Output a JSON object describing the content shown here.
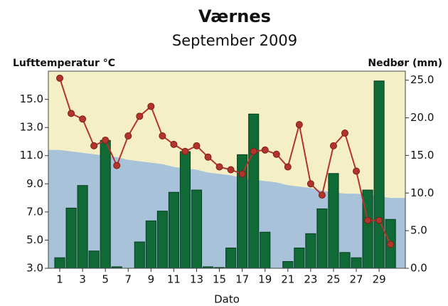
{
  "chart_data": {
    "type": "combo",
    "title": "Værnes",
    "subtitle": "September 2009",
    "ylabel": "Lufttemperatur °C",
    "y2label": "Nedbør (mm)",
    "xlabel": "Dato",
    "x": [
      1,
      2,
      3,
      4,
      5,
      6,
      7,
      8,
      9,
      10,
      11,
      12,
      13,
      14,
      15,
      16,
      17,
      18,
      19,
      20,
      21,
      22,
      23,
      24,
      25,
      26,
      27,
      28,
      29,
      30
    ],
    "xlim": [
      0,
      31.3
    ],
    "xticks": [
      1,
      3,
      5,
      7,
      9,
      11,
      13,
      15,
      17,
      19,
      21,
      23,
      25,
      27,
      29
    ],
    "ylim": [
      3,
      17
    ],
    "yticks": [
      {
        "value": 3,
        "label": "3.0"
      },
      {
        "value": 5,
        "label": "5.0"
      },
      {
        "value": 7,
        "label": "7.0"
      },
      {
        "value": 9,
        "label": "9.0"
      },
      {
        "value": 11,
        "label": "11.0"
      },
      {
        "value": 13,
        "label": "13.0"
      },
      {
        "value": 15,
        "label": "15.0"
      }
    ],
    "y2lim": [
      0,
      26.2
    ],
    "y2ticks": [
      {
        "value": 0,
        "label": "0.0"
      },
      {
        "value": 5,
        "label": "5.0"
      },
      {
        "value": 10,
        "label": "10.0"
      },
      {
        "value": 15,
        "label": "15.0"
      },
      {
        "value": 20,
        "label": "20.0"
      },
      {
        "value": 25,
        "label": "25.0"
      }
    ],
    "background_color": "#f4efc6",
    "series": [
      {
        "type": "area",
        "color": "#a8c3d9",
        "values": [
          11.4,
          11.3,
          11.2,
          11.1,
          11.0,
          10.9,
          10.7,
          10.6,
          10.5,
          10.4,
          10.2,
          10.1,
          10.0,
          9.8,
          9.7,
          9.6,
          9.4,
          9.3,
          9.2,
          9.1,
          8.9,
          8.8,
          8.7,
          8.5,
          8.4,
          8.3,
          8.3,
          8.2,
          8.1,
          8.0
        ]
      },
      {
        "type": "bar",
        "axis": "y2",
        "color": "#0f6a36",
        "values": [
          1.4,
          8.0,
          11.0,
          2.3,
          17.0,
          0.2,
          0,
          3.5,
          6.3,
          7.6,
          10.1,
          15.5,
          10.4,
          0.2,
          0.1,
          2.7,
          15.1,
          20.5,
          4.8,
          0,
          0.9,
          2.7,
          4.6,
          7.9,
          12.6,
          2.1,
          1.4,
          10.4,
          24.9,
          6.5
        ]
      },
      {
        "type": "line",
        "color": "#b2352c",
        "values": [
          16.5,
          14.0,
          13.6,
          11.7,
          12.1,
          10.3,
          12.4,
          13.8,
          14.5,
          12.4,
          11.8,
          11.3,
          11.7,
          10.9,
          10.2,
          10.0,
          9.7,
          11.3,
          11.4,
          11.1,
          10.2,
          13.2,
          9.0,
          8.2,
          11.7,
          12.6,
          9.9,
          6.4,
          6.4,
          4.7
        ]
      }
    ]
  }
}
